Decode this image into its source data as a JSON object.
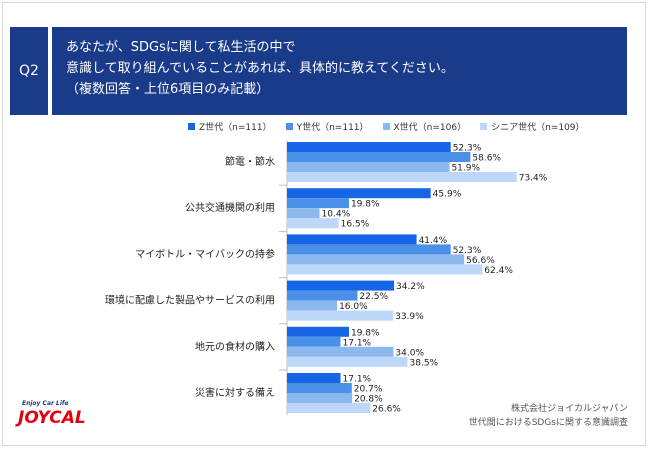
{
  "question": {
    "badge": "Q2",
    "lines": [
      "あなたが、SDGsに関して私生活の中で",
      "意識して取り組んでいることがあれば、具体的に教えてください。",
      "（複数回答・上位6項目のみ記載）"
    ]
  },
  "colors": {
    "header_bg": "#1a3a8a",
    "z": "#1565e6",
    "y": "#4a8fe8",
    "x": "#8cb8f0",
    "senior": "#bcd7f7"
  },
  "chart_data": {
    "type": "bar",
    "orientation": "horizontal",
    "unit": "%",
    "xlim": [
      0,
      80
    ],
    "categories": [
      "節電・節水",
      "公共交通機関の利用",
      "マイボトル・マイバックの持参",
      "環境に配慮した製品やサービスの利用",
      "地元の食材の購入",
      "災害に対する備え"
    ],
    "series": [
      {
        "name": "Z世代（n=111）",
        "values": [
          52.3,
          45.9,
          41.4,
          34.2,
          19.8,
          17.1
        ]
      },
      {
        "name": "Y世代（n=111）",
        "values": [
          58.6,
          19.8,
          52.3,
          22.5,
          17.1,
          20.7
        ]
      },
      {
        "name": "X世代（n=106）",
        "values": [
          51.9,
          10.4,
          56.6,
          16.0,
          34.0,
          20.8
        ]
      },
      {
        "name": "シニア世代（n=109）",
        "values": [
          73.4,
          16.5,
          62.4,
          33.9,
          38.5,
          26.6
        ]
      }
    ],
    "legend_position": "top"
  },
  "footer": {
    "logo_tagline": "Enjoy Car Life",
    "logo_word": "JOYCAL",
    "source_line1": "株式会社ジョイカルジャパン",
    "source_line2": "世代間におけるSDGsに関する意識調査"
  }
}
